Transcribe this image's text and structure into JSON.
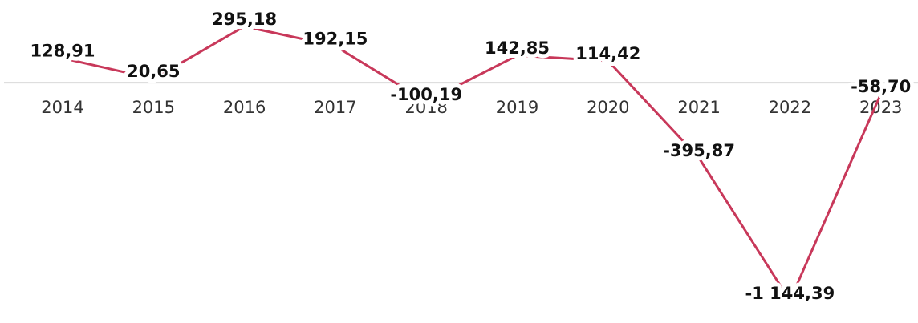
{
  "chart_data": {
    "type": "line",
    "categories": [
      "2014",
      "2015",
      "2016",
      "2017",
      "2018",
      "2019",
      "2020",
      "2021",
      "2022",
      "2023"
    ],
    "series": [
      {
        "color": "#c8385a",
        "values": [
          128.91,
          20.65,
          295.18,
          192.15,
          -100.19,
          142.85,
          114.42,
          -395.87,
          -1144.39,
          -58.7
        ],
        "value_labels": [
          "128,91",
          "20,65",
          "295,18",
          "192,15",
          "-100,19",
          "142,85",
          "114,42",
          "-395,87",
          "-1 144,39",
          "-58,70"
        ]
      }
    ]
  }
}
